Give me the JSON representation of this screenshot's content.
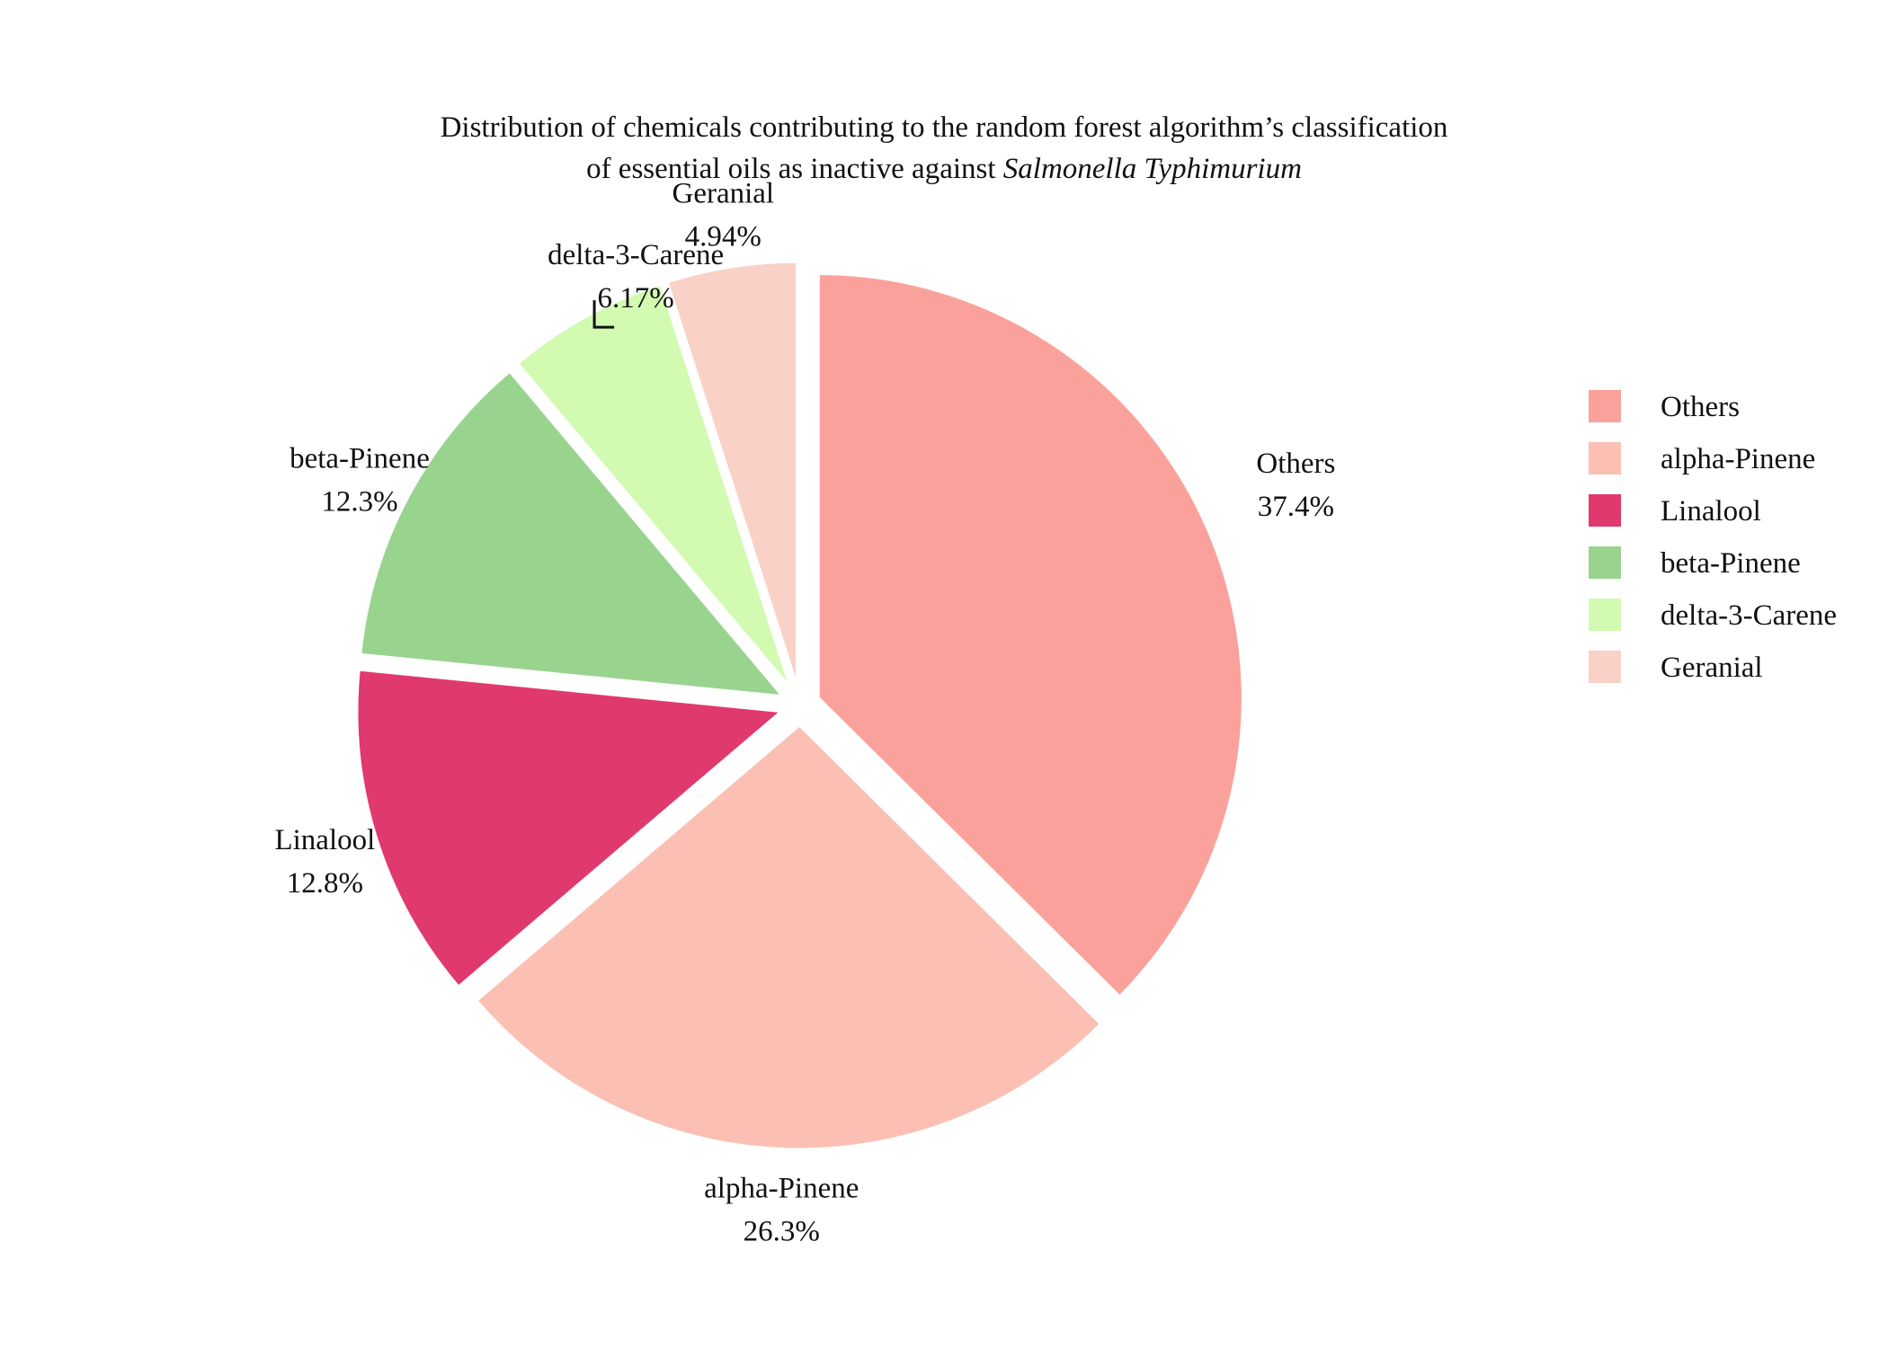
{
  "chart_data": {
    "type": "pie",
    "title_line1": "Distribution of chemicals contributing to the random forest algorithm’s classification",
    "title_line2_prefix": "of essential oils as inactive against ",
    "title_line2_italic": "Salmonella Typhimurium",
    "slices": [
      {
        "label": "Others",
        "value": 37.4,
        "display": "37.4%",
        "color": "#fba19b"
      },
      {
        "label": "alpha-Pinene",
        "value": 26.3,
        "display": "26.3%",
        "color": "#fbc0b3"
      },
      {
        "label": "Linalool",
        "value": 12.8,
        "display": "12.8%",
        "color": "#e0396d"
      },
      {
        "label": "beta-Pinene",
        "value": 12.3,
        "display": "12.3%",
        "color": "#99d48f"
      },
      {
        "label": "delta-3-Carene",
        "value": 6.17,
        "display": "6.17%",
        "color": "#d3fab1"
      },
      {
        "label": "Geranial",
        "value": 4.94,
        "display": "4.94%",
        "color": "#f9d1c7"
      }
    ],
    "legend": {
      "position": "right",
      "items": [
        "Others",
        "alpha-Pinene",
        "Linalool",
        "beta-Pinene",
        "delta-3-Carene",
        "Geranial"
      ]
    },
    "exploded": true,
    "start_angle": "12 o'clock",
    "direction": "clockwise"
  }
}
